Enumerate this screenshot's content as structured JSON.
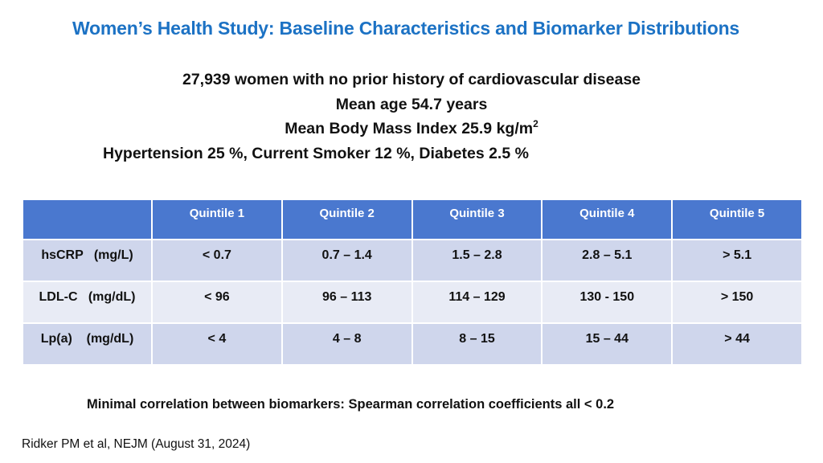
{
  "title": "Women’s Health Study: Baseline Characteristics and Biomarker Distributions",
  "summary": {
    "line1": "27,939 women with no prior history of cardiovascular disease",
    "line2": "Mean age 54.7 years",
    "line3": "Mean Body Mass Index 25.9 kg/m",
    "line3_sup": "2",
    "line4": "Hypertension 25 %, Current Smoker 12 %, Diabetes 2.5 %"
  },
  "table": {
    "corner": "",
    "headers": [
      "Quintile 1",
      "Quintile 2",
      "Quintile 3",
      "Quintile 4",
      "Quintile 5"
    ],
    "rows": [
      {
        "label": "hsCRP   (mg/L)",
        "cells": [
          "< 0.7",
          "0.7 – 1.4",
          "1.5 – 2.8",
          "2.8 – 5.1",
          "> 5.1"
        ]
      },
      {
        "label": "LDL-C   (mg/dL)",
        "cells": [
          "< 96",
          "96 – 113",
          "114 – 129",
          "130 - 150",
          "> 150"
        ]
      },
      {
        "label": "Lp(a)    (mg/dL)",
        "cells": [
          "< 4",
          "4 – 8",
          "8 – 15",
          "15 – 44",
          "> 44"
        ]
      }
    ]
  },
  "footnote": "Minimal correlation between biomarkers: Spearman correlation coefficients all < 0.2",
  "citation": "Ridker PM et al, NEJM (August 31, 2024)",
  "colors": {
    "title": "#1c72c4",
    "header_bg": "#4a78cf",
    "row_dark": "#cfd6ec",
    "row_light": "#e8ebf5"
  }
}
